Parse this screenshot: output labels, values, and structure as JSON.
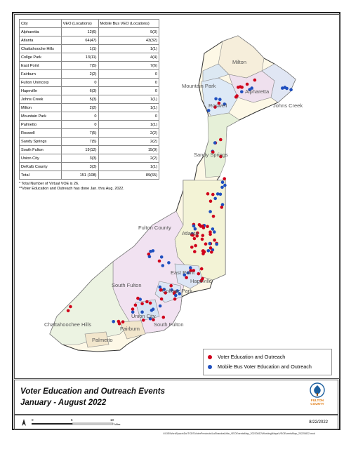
{
  "table": {
    "headers": [
      "City",
      "VEO (Locations)",
      "Mobile Bus VEO (Locations)"
    ],
    "rows": [
      [
        "Alpharetta",
        "12(6)",
        "9(3)"
      ],
      [
        "Atlanta",
        "64(47)",
        "43(32)"
      ],
      [
        "Chattahooche Hills",
        "1(1)",
        "1(1)"
      ],
      [
        "Collge Park",
        "13(11)",
        "4(4)"
      ],
      [
        "East Point",
        "7(5)",
        "7(6)"
      ],
      [
        "Fairburn",
        "2(2)",
        "0"
      ],
      [
        "Fulton Unincorp",
        "0",
        "0"
      ],
      [
        "Hapeville",
        "6(3)",
        "0"
      ],
      [
        "Johns Creek",
        "5(3)",
        "1(1)"
      ],
      [
        "Milton",
        "2(2)",
        "1(1)"
      ],
      [
        "Mountain Park",
        "0",
        "0"
      ],
      [
        "Palmetto",
        "0",
        "1(1)"
      ],
      [
        "Roswell",
        "7(5)",
        "2(2)"
      ],
      [
        "Sandy Springs",
        "7(5)",
        "2(2)"
      ],
      [
        "South Fulton",
        "19(12)",
        "15(9)"
      ],
      [
        "Union City",
        "3(3)",
        "2(2)"
      ],
      [
        "DeKalb County",
        "3(3)",
        "1(1)"
      ],
      [
        "Total",
        "151 (108)",
        "89(65)"
      ]
    ],
    "note1": "* Total Number of Virtual VOE is 26.",
    "note2": "**Voter Education and Outreach has done Jan. thru Aug. 2022."
  },
  "map_labels": {
    "milton": "Milton",
    "mountain_park": "Mountain Park",
    "alpharetta": "Alpharetta",
    "roswell": "Roswell",
    "johns_creek": "Johns Creek",
    "sandy_springs": "Sandy Springs",
    "fulton_county": "Fulton County",
    "atlanta": "Atlanta",
    "east_point": "East Point",
    "hapeville": "Hapeville",
    "college_park": "College Park",
    "south_fulton": "South Fulton",
    "union_city": "Union City",
    "chattahoochee_hills": "Chattahoochee Hills",
    "fairburn": "Fairburn",
    "palmetto": "Palmetto"
  },
  "legend": {
    "veo": "Voter Education and Outreach",
    "bus": "Mobile Bus Voter Education and Outreach",
    "veo_color": "#d0021b",
    "bus_color": "#1f4fbf"
  },
  "title": {
    "line1": "Voter Education and Outreach Events",
    "line2": "January - August 2022"
  },
  "logo": {
    "line1": "FULTON",
    "line2": "COUNTY"
  },
  "date": "8/22/2022",
  "scale": {
    "ticks": [
      "0",
      "5",
      "10"
    ],
    "unit": "Miles"
  },
  "file_path": "I:\\GIS\\WorkSpace\\DoIT\\GIS\\VoterPrecincts\\LaShandraLittle_VEOEventsMap_20220812\\Working\\Maps\\VEOEventsMap_20220822.mxd"
}
